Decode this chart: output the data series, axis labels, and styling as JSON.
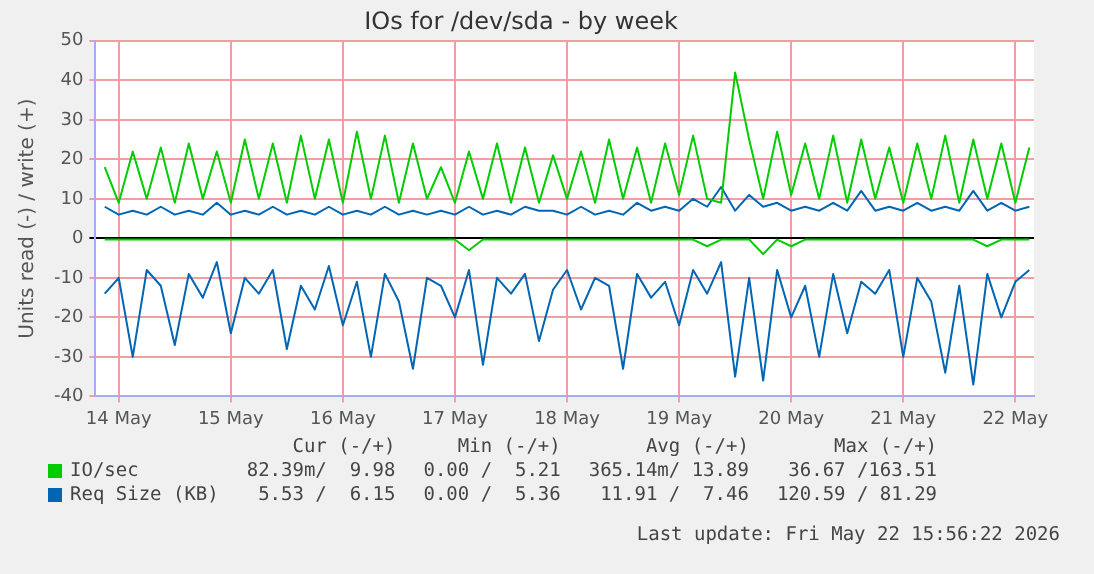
{
  "chart_data": {
    "type": "line",
    "title": "IOs for /dev/sda - by week",
    "ylabel": "Units read (-) / write (+)",
    "x": [
      "2026-05-13T21:00",
      "2026-05-14T00:00",
      "2026-05-14T03:00",
      "2026-05-14T06:00",
      "2026-05-14T09:00",
      "2026-05-14T12:00",
      "2026-05-14T15:00",
      "2026-05-14T18:00",
      "2026-05-14T21:00",
      "2026-05-15T00:00",
      "2026-05-15T03:00",
      "2026-05-15T06:00",
      "2026-05-15T09:00",
      "2026-05-15T12:00",
      "2026-05-15T15:00",
      "2026-05-15T18:00",
      "2026-05-15T21:00",
      "2026-05-16T00:00",
      "2026-05-16T03:00",
      "2026-05-16T06:00",
      "2026-05-16T09:00",
      "2026-05-16T12:00",
      "2026-05-16T15:00",
      "2026-05-16T18:00",
      "2026-05-16T21:00",
      "2026-05-17T00:00",
      "2026-05-17T03:00",
      "2026-05-17T06:00",
      "2026-05-17T09:00",
      "2026-05-17T12:00",
      "2026-05-17T15:00",
      "2026-05-17T18:00",
      "2026-05-17T21:00",
      "2026-05-18T00:00",
      "2026-05-18T03:00",
      "2026-05-18T06:00",
      "2026-05-18T09:00",
      "2026-05-18T12:00",
      "2026-05-18T15:00",
      "2026-05-18T18:00",
      "2026-05-18T21:00",
      "2026-05-19T00:00",
      "2026-05-19T03:00",
      "2026-05-19T06:00",
      "2026-05-19T09:00",
      "2026-05-19T12:00",
      "2026-05-19T15:00",
      "2026-05-19T18:00",
      "2026-05-19T21:00",
      "2026-05-20T00:00",
      "2026-05-20T03:00",
      "2026-05-20T06:00",
      "2026-05-20T09:00",
      "2026-05-20T12:00",
      "2026-05-20T15:00",
      "2026-05-20T18:00",
      "2026-05-20T21:00",
      "2026-05-21T00:00",
      "2026-05-21T03:00",
      "2026-05-21T06:00",
      "2026-05-21T09:00",
      "2026-05-21T12:00",
      "2026-05-21T15:00",
      "2026-05-21T18:00",
      "2026-05-21T21:00",
      "2026-05-22T00:00",
      "2026-05-22T03:00"
    ],
    "series": [
      {
        "name": "IO/sec",
        "color": "#00cc00",
        "values": [
          18,
          9,
          22,
          10,
          23,
          9,
          24,
          10,
          22,
          9,
          25,
          10,
          24,
          9,
          26,
          10,
          25,
          9,
          27,
          10,
          26,
          9,
          24,
          10,
          18,
          9,
          22,
          10,
          24,
          9,
          23,
          9,
          21,
          10,
          22,
          9,
          25,
          10,
          23,
          9,
          24,
          11,
          26,
          10,
          9,
          42,
          25,
          10,
          27,
          11,
          24,
          10,
          26,
          9,
          25,
          10,
          23,
          9,
          24,
          10,
          26,
          9,
          25,
          10,
          24,
          9,
          23
        ]
      },
      {
        "color": "#00cc00",
        "values": [
          -0.3,
          -0.3,
          -0.3,
          -0.3,
          -0.3,
          -0.3,
          -0.3,
          -0.3,
          -0.3,
          -0.3,
          -0.3,
          -0.3,
          -0.3,
          -0.3,
          -0.3,
          -0.3,
          -0.3,
          -0.3,
          -0.3,
          -0.3,
          -0.3,
          -0.3,
          -0.3,
          -0.3,
          -0.3,
          -0.3,
          -3,
          -0.3,
          -0.3,
          -0.3,
          -0.3,
          -0.3,
          -0.3,
          -0.3,
          -0.3,
          -0.3,
          -0.3,
          -0.3,
          -0.3,
          -0.3,
          -0.3,
          -0.3,
          -0.3,
          -2,
          -0.3,
          -0.3,
          -0.3,
          -4,
          -0.3,
          -2,
          -0.3,
          -0.3,
          -0.3,
          -0.3,
          -0.3,
          -0.3,
          -0.3,
          -0.3,
          -0.3,
          -0.3,
          -0.3,
          -0.3,
          -0.3,
          -2,
          -0.3,
          -0.3,
          -0.3
        ]
      },
      {
        "name": "Req Size (KB)",
        "color": "#0066b3",
        "values": [
          8,
          6,
          7,
          6,
          8,
          6,
          7,
          6,
          9,
          6,
          7,
          6,
          8,
          6,
          7,
          6,
          8,
          6,
          7,
          6,
          8,
          6,
          7,
          6,
          7,
          6,
          8,
          6,
          7,
          6,
          8,
          7,
          7,
          6,
          8,
          6,
          7,
          6,
          9,
          7,
          8,
          7,
          10,
          8,
          13,
          7,
          11,
          8,
          9,
          7,
          8,
          7,
          9,
          7,
          12,
          7,
          8,
          7,
          9,
          7,
          8,
          7,
          12,
          7,
          9,
          7,
          8
        ]
      },
      {
        "color": "#0066b3",
        "values": [
          -14,
          -10,
          -30,
          -8,
          -12,
          -27,
          -9,
          -15,
          -6,
          -24,
          -10,
          -14,
          -8,
          -28,
          -12,
          -18,
          -7,
          -22,
          -11,
          -30,
          -9,
          -16,
          -33,
          -10,
          -12,
          -20,
          -8,
          -32,
          -10,
          -14,
          -9,
          -26,
          -13,
          -8,
          -18,
          -10,
          -12,
          -33,
          -9,
          -15,
          -11,
          -22,
          -8,
          -14,
          -6,
          -35,
          -10,
          -36,
          -8,
          -20,
          -12,
          -30,
          -9,
          -24,
          -11,
          -14,
          -8,
          -30,
          -10,
          -16,
          -34,
          -12,
          -37,
          -9,
          -20,
          -11,
          -8
        ]
      }
    ],
    "xlim": [
      "2026-05-13T19:00",
      "2026-05-22T04:00"
    ],
    "xticks": [
      {
        "value": "2026-05-14",
        "label": "14 May"
      },
      {
        "value": "2026-05-15",
        "label": "15 May"
      },
      {
        "value": "2026-05-16",
        "label": "16 May"
      },
      {
        "value": "2026-05-17",
        "label": "17 May"
      },
      {
        "value": "2026-05-18",
        "label": "18 May"
      },
      {
        "value": "2026-05-19",
        "label": "19 May"
      },
      {
        "value": "2026-05-20",
        "label": "20 May"
      },
      {
        "value": "2026-05-21",
        "label": "21 May"
      },
      {
        "value": "2026-05-22",
        "label": "22 May"
      }
    ],
    "ylim": [
      -40,
      50
    ],
    "yticks": [
      -40,
      -30,
      -20,
      -10,
      0,
      10,
      20,
      30,
      40,
      50
    ],
    "grid": true,
    "legend": "bottom left",
    "annotations": [
      "Cur (-/+)",
      "Min (-/+)",
      "Avg (-/+)",
      "Max (-/+)",
      "82.39m/  9.98",
      "0.00 /  5.21",
      "365.14m/ 13.89",
      "36.67 /163.51",
      "5.53 /  6.15",
      "0.00 /  5.36",
      "11.91 /  7.46",
      "120.59 / 81.29",
      "Last update: Fri May 22 15:56:22 2026"
    ]
  }
}
